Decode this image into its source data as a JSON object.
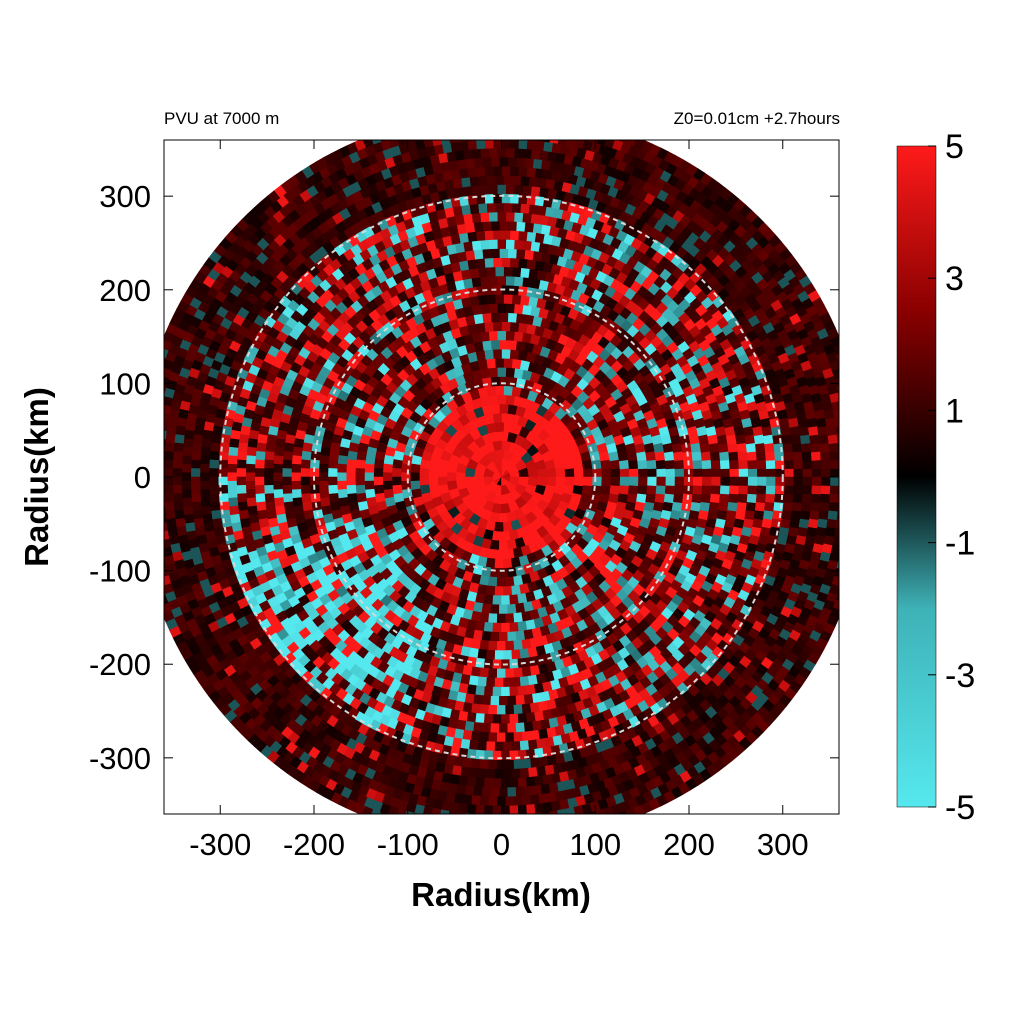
{
  "chart_data": {
    "type": "heatmap",
    "title_left": "PVU at  7000 m",
    "title_right": "Z0=0.01cm  +2.7hours",
    "xlabel": "Radius(km)",
    "ylabel": "Radius(km)",
    "xlim": [
      -360,
      360
    ],
    "ylim": [
      -360,
      360
    ],
    "x_ticks": [
      -300,
      -200,
      -100,
      0,
      100,
      200,
      300
    ],
    "y_ticks": [
      300,
      200,
      100,
      0,
      -100,
      -200,
      -300
    ],
    "domain_radius_km": 390,
    "reference_circles_km": [
      100,
      200,
      300
    ],
    "colorbar": {
      "range": [
        -5,
        5
      ],
      "tick_labels": [
        "5",
        "3",
        "1",
        "-1",
        "-3",
        "-5"
      ],
      "tick_values": [
        5,
        3,
        1,
        -1,
        -3,
        -5
      ],
      "colors": {
        "min": "#55e8ee",
        "low": "#2f8e92",
        "zero": "#000000",
        "high": "#8a0000",
        "max": "#ff1a1a"
      }
    },
    "features": {
      "core": "intense positive PV (>5 PVU) near center within ~100 km",
      "rings": "mixed positive and negative PV bands between 100 and 300 km",
      "outer": "weak positive PV beyond 300 km"
    }
  }
}
